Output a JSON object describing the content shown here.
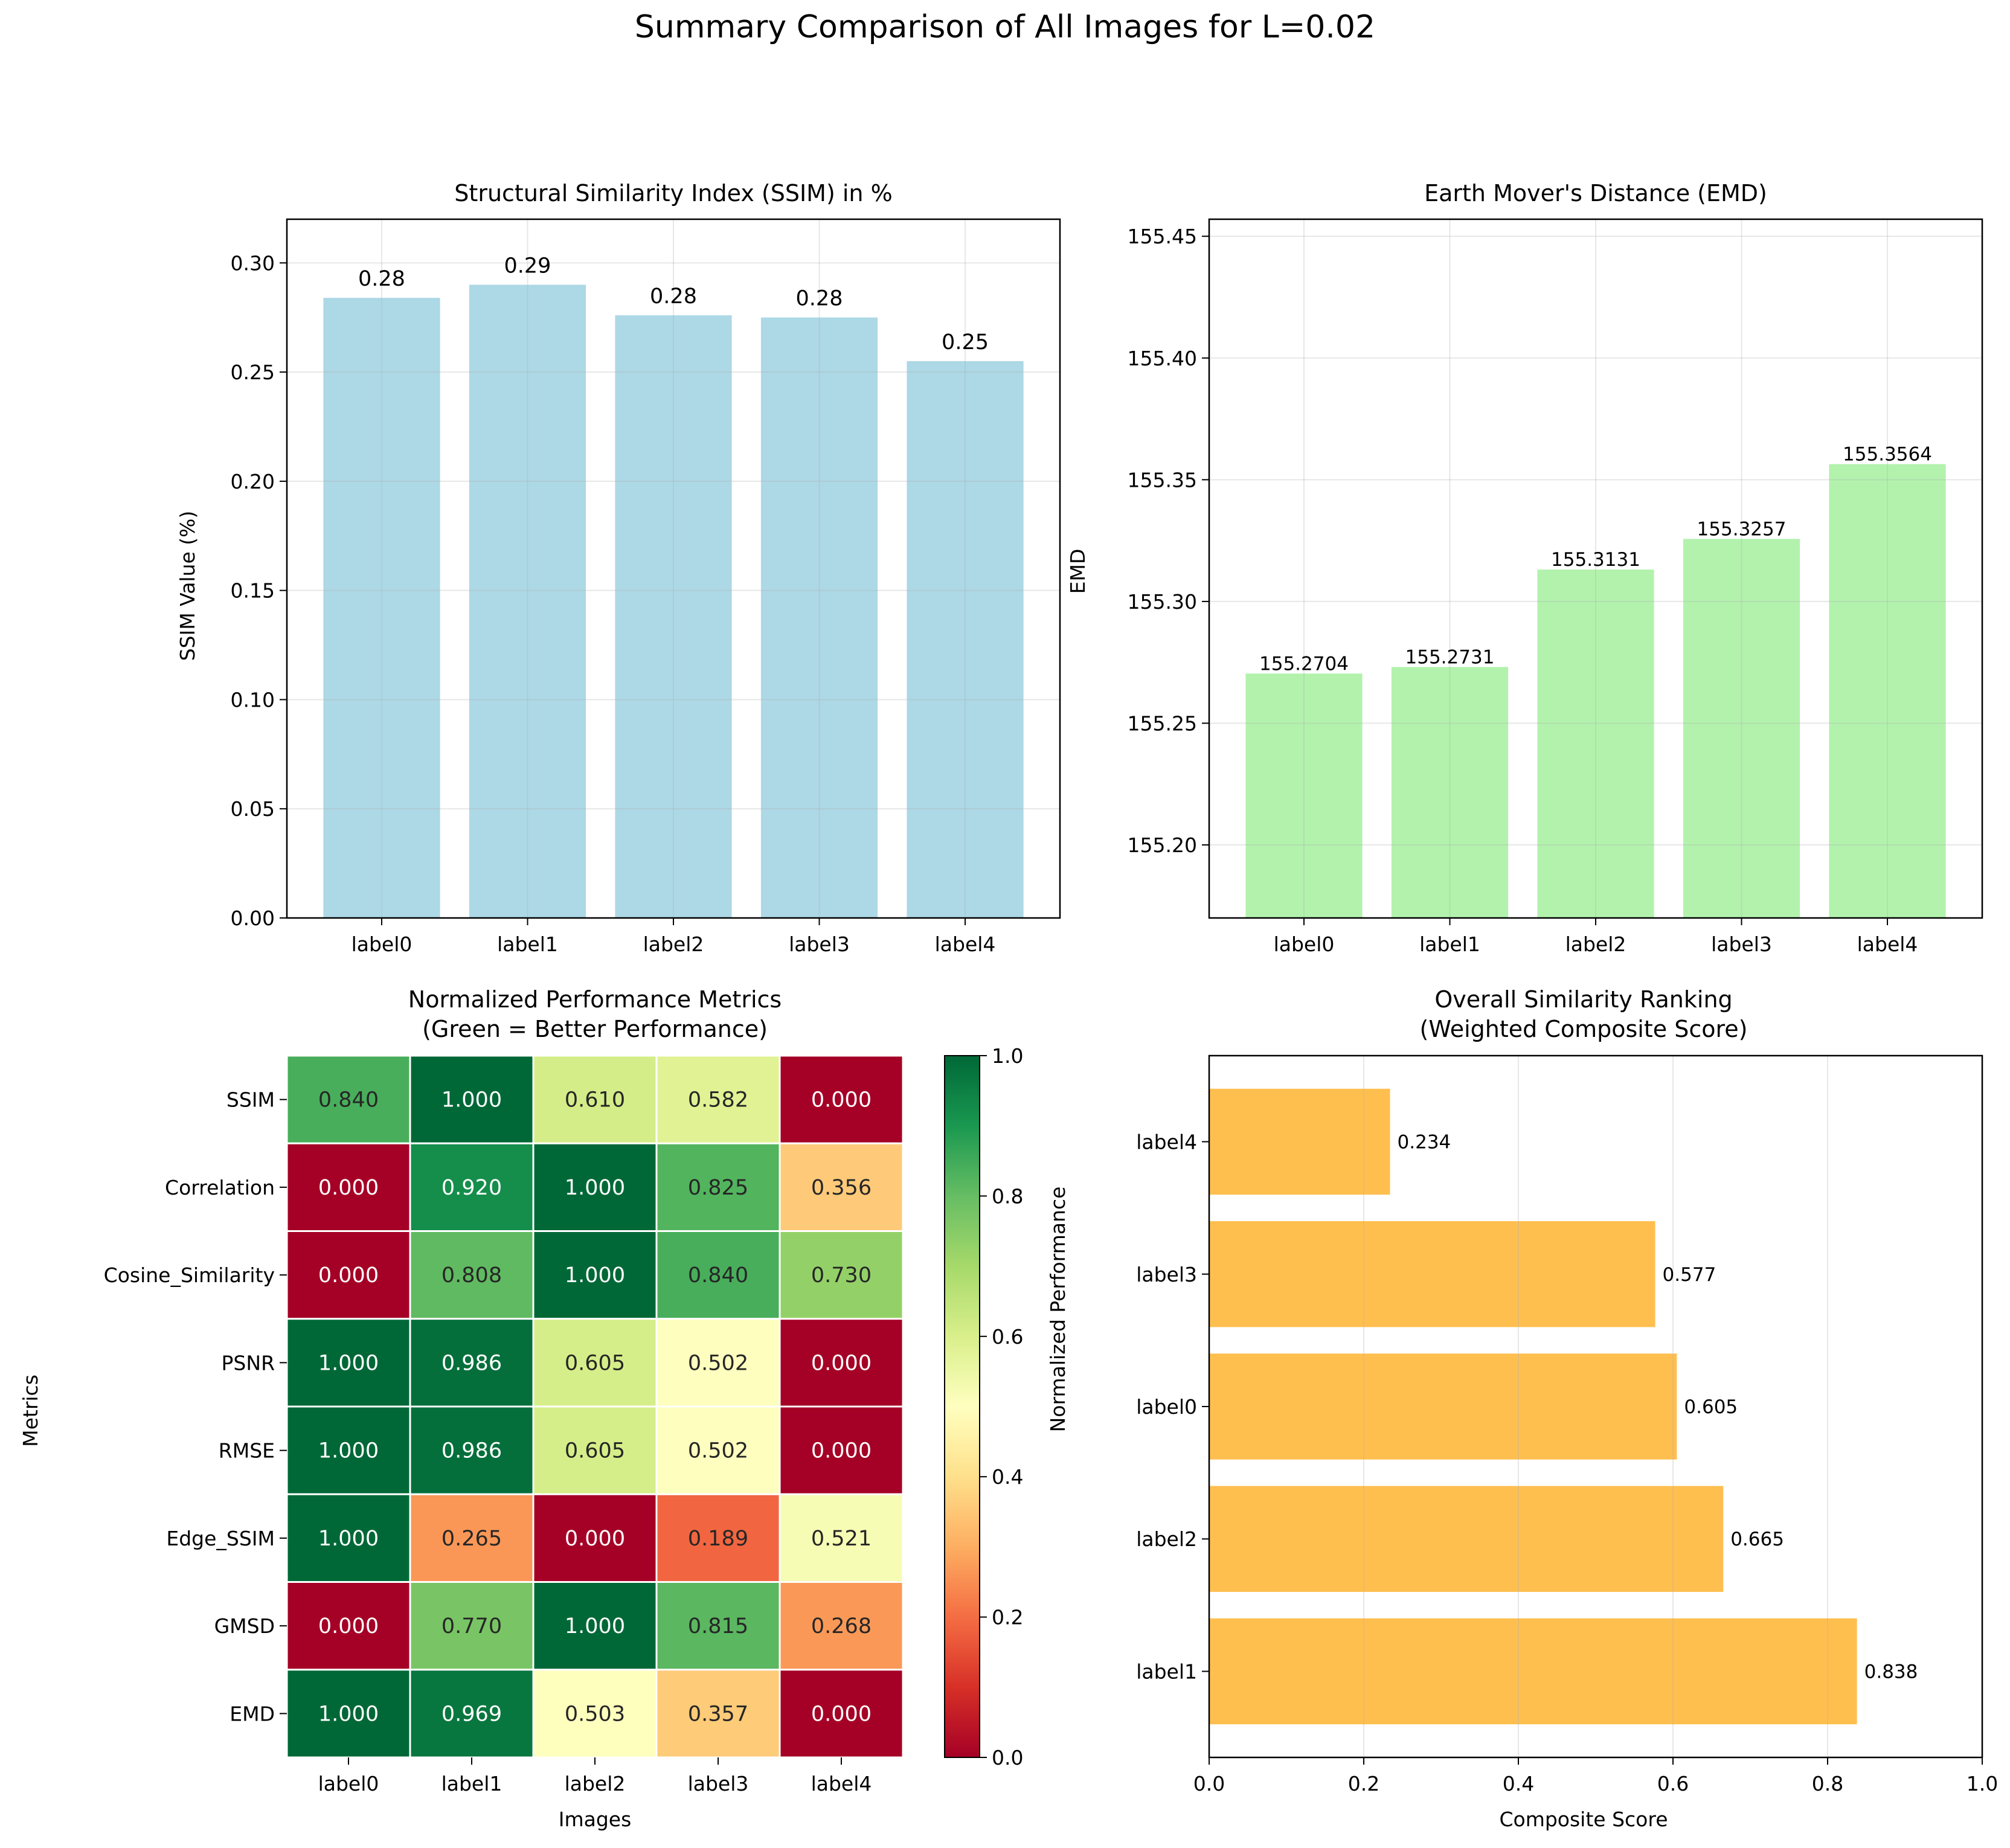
{
  "suptitle": "Summary Comparison of All Images for L=0.02",
  "chart_data": [
    {
      "type": "bar",
      "title": "Structural Similarity Index (SSIM) in %",
      "xlabel": "",
      "ylabel": "SSIM Value (%)",
      "categories": [
        "label0",
        "label1",
        "label2",
        "label3",
        "label4"
      ],
      "values": [
        0.284,
        0.29,
        0.276,
        0.275,
        0.255
      ],
      "value_labels": [
        "0.28",
        "0.29",
        "0.28",
        "0.28",
        "0.25"
      ],
      "ylim": [
        0,
        0.32
      ],
      "yticks": [
        0.0,
        0.05,
        0.1,
        0.15,
        0.2,
        0.25,
        0.3
      ],
      "ytick_labels": [
        "0.00",
        "0.05",
        "0.10",
        "0.15",
        "0.20",
        "0.25",
        "0.30"
      ],
      "color": "#add8e6",
      "grid": true
    },
    {
      "type": "bar",
      "title": "Earth Mover's Distance (EMD)",
      "xlabel": "",
      "ylabel": "EMD",
      "categories": [
        "label0",
        "label1",
        "label2",
        "label3",
        "label4"
      ],
      "values": [
        155.2704,
        155.2731,
        155.3131,
        155.3257,
        155.3564
      ],
      "value_labels": [
        "155.2704",
        "155.2731",
        "155.3131",
        "155.3257",
        "155.3564"
      ],
      "ylim": [
        155.17,
        155.457
      ],
      "yticks": [
        155.2,
        155.25,
        155.3,
        155.35,
        155.4,
        155.45
      ],
      "ytick_labels": [
        "155.20",
        "155.25",
        "155.30",
        "155.35",
        "155.40",
        "155.45"
      ],
      "color": "#b2f2ad",
      "grid": true
    },
    {
      "type": "heatmap",
      "title": "Normalized Performance Metrics",
      "subtitle": "(Green = Better Performance)",
      "xlabel": "Images",
      "ylabel": "Metrics",
      "x": [
        "label0",
        "label1",
        "label2",
        "label3",
        "label4"
      ],
      "y": [
        "SSIM",
        "Correlation",
        "Cosine_Similarity",
        "PSNR",
        "RMSE",
        "Edge_SSIM",
        "GMSD",
        "EMD"
      ],
      "values": [
        [
          0.84,
          1.0,
          0.61,
          0.582,
          0.0
        ],
        [
          0.0,
          0.92,
          1.0,
          0.825,
          0.356
        ],
        [
          0.0,
          0.808,
          1.0,
          0.84,
          0.73
        ],
        [
          1.0,
          0.986,
          0.605,
          0.502,
          0.0
        ],
        [
          1.0,
          0.986,
          0.605,
          0.502,
          0.0
        ],
        [
          1.0,
          0.265,
          0.0,
          0.189,
          0.521
        ],
        [
          0.0,
          0.77,
          1.0,
          0.815,
          0.268
        ],
        [
          1.0,
          0.969,
          0.503,
          0.357,
          0.0
        ]
      ],
      "colormap": "RdYlGn",
      "colorbar_label": "Normalized Performance",
      "colorbar_ticks": [
        0.0,
        0.2,
        0.4,
        0.6,
        0.8,
        1.0
      ],
      "colorbar_tick_labels": [
        "0.0",
        "0.2",
        "0.4",
        "0.6",
        "0.8",
        "1.0"
      ],
      "vmin": 0,
      "vmax": 1
    },
    {
      "type": "bar",
      "orientation": "horizontal",
      "title": "Overall Similarity Ranking",
      "subtitle": "(Weighted Composite Score)",
      "xlabel": "Composite Score",
      "ylabel": "",
      "categories": [
        "label1",
        "label2",
        "label0",
        "label3",
        "label4"
      ],
      "values": [
        0.838,
        0.665,
        0.605,
        0.577,
        0.234
      ],
      "value_labels": [
        "0.838",
        "0.665",
        "0.605",
        "0.577",
        "0.234"
      ],
      "xlim": [
        0,
        1.0
      ],
      "xticks": [
        0.0,
        0.2,
        0.4,
        0.6,
        0.8,
        1.0
      ],
      "xtick_labels": [
        "0.0",
        "0.2",
        "0.4",
        "0.6",
        "0.8",
        "1.0"
      ],
      "color": "#ffbf4f",
      "grid": true
    }
  ]
}
